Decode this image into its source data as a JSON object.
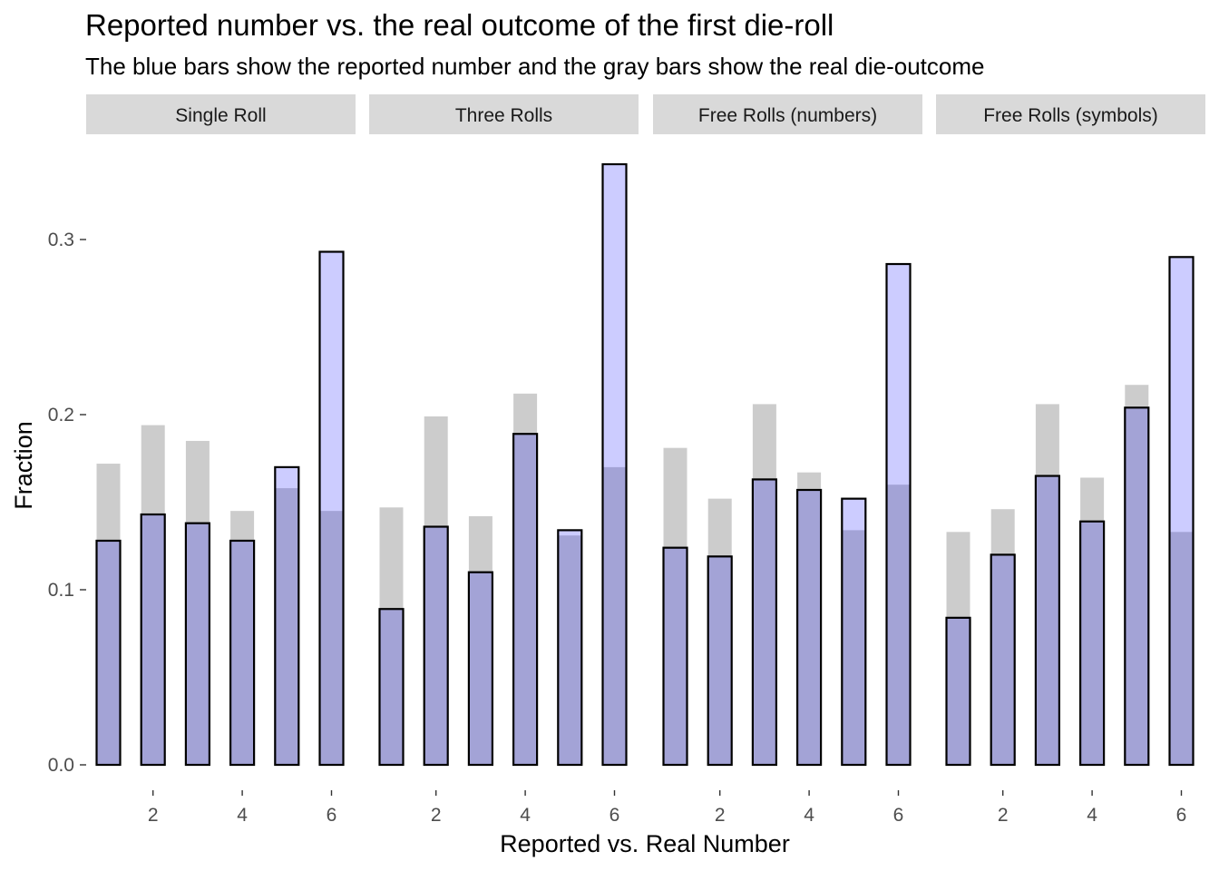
{
  "chart_data": {
    "type": "bar",
    "title": "Reported number vs. the real outcome of the first die-roll",
    "subtitle": "The blue bars show the reported number and the gray bars show the real die-outcome",
    "xlabel": "Reported vs. Real Number",
    "ylabel": "Fraction",
    "x": [
      1,
      2,
      3,
      4,
      5,
      6
    ],
    "x_ticks": [
      "2",
      "4",
      "6"
    ],
    "y_ticks": [
      "0.0",
      "0.1",
      "0.2",
      "0.3"
    ],
    "ylim": [
      0,
      0.35
    ],
    "colors": {
      "reported": "#0000ff",
      "real": "#7f7f7f",
      "outline": "#000000",
      "strip_bg": "#d9d9d9"
    },
    "facets": [
      {
        "label": "Single Roll",
        "reported": [
          0.128,
          0.143,
          0.138,
          0.128,
          0.17,
          0.293
        ],
        "real": [
          0.172,
          0.194,
          0.185,
          0.145,
          0.158,
          0.145
        ]
      },
      {
        "label": "Three Rolls",
        "reported": [
          0.089,
          0.136,
          0.11,
          0.189,
          0.134,
          0.343
        ],
        "real": [
          0.147,
          0.199,
          0.142,
          0.212,
          0.131,
          0.17
        ]
      },
      {
        "label": "Free Rolls (numbers)",
        "reported": [
          0.124,
          0.119,
          0.163,
          0.157,
          0.152,
          0.286
        ],
        "real": [
          0.181,
          0.152,
          0.206,
          0.167,
          0.134,
          0.16
        ]
      },
      {
        "label": "Free Rolls (symbols)",
        "reported": [
          0.084,
          0.12,
          0.165,
          0.139,
          0.204,
          0.29
        ],
        "real": [
          0.133,
          0.146,
          0.206,
          0.164,
          0.217,
          0.133
        ]
      }
    ]
  }
}
